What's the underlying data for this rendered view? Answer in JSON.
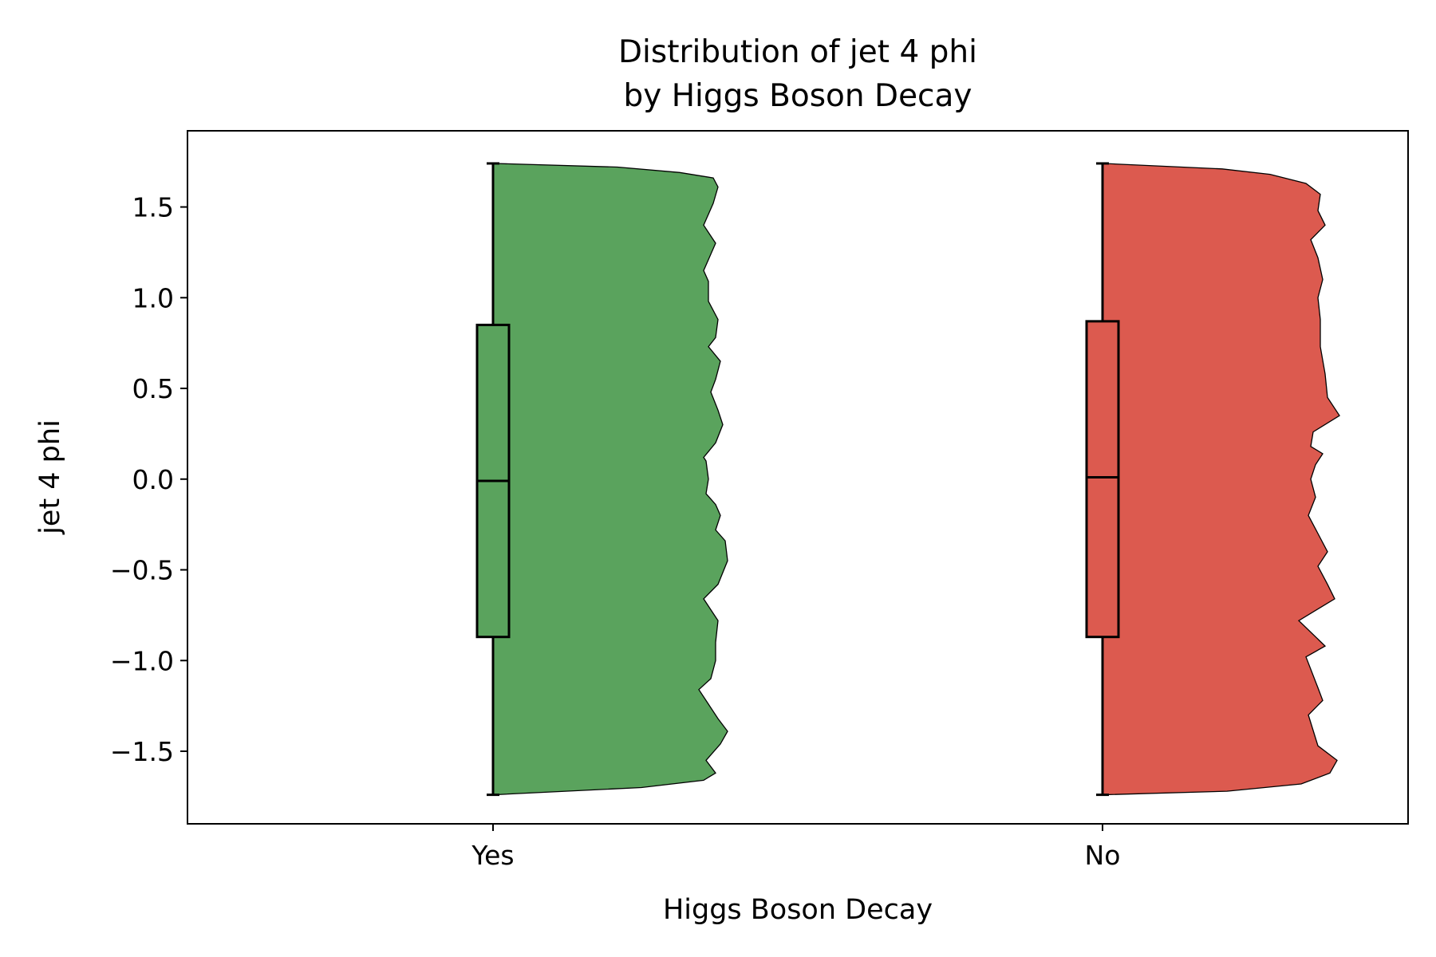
{
  "chart_data": {
    "type": "violin",
    "title_lines": [
      "Distribution of jet 4 phi",
      "by Higgs Boson Decay"
    ],
    "xlabel": "Higgs Boson Decay",
    "ylabel": "jet 4 phi",
    "ylim": [
      -1.9,
      1.92
    ],
    "yticks": [
      {
        "value": 1.5,
        "label": "1.5"
      },
      {
        "value": 1.0,
        "label": "1.0"
      },
      {
        "value": 0.5,
        "label": "0.5"
      },
      {
        "value": 0.0,
        "label": "0.0"
      },
      {
        "value": -0.5,
        "label": "−0.5"
      },
      {
        "value": -1.0,
        "label": "−1.0"
      },
      {
        "value": -1.5,
        "label": "−1.5"
      }
    ],
    "categories": [
      "Yes",
      "No"
    ],
    "series": [
      {
        "category": "Yes",
        "color": "#5aa35d",
        "box": {
          "min": -1.74,
          "q1": -0.87,
          "median": -0.01,
          "q3": 0.85,
          "max": 1.74
        },
        "density": [
          [
            -1.74,
            0.0
          ],
          [
            -1.7,
            0.62
          ],
          [
            -1.66,
            0.88
          ],
          [
            -1.62,
            0.93
          ],
          [
            -1.55,
            0.89
          ],
          [
            -1.46,
            0.95
          ],
          [
            -1.39,
            0.98
          ],
          [
            -1.32,
            0.94
          ],
          [
            -1.24,
            0.9
          ],
          [
            -1.16,
            0.86
          ],
          [
            -1.1,
            0.91
          ],
          [
            -1.0,
            0.93
          ],
          [
            -0.9,
            0.93
          ],
          [
            -0.78,
            0.94
          ],
          [
            -0.66,
            0.88
          ],
          [
            -0.58,
            0.94
          ],
          [
            -0.45,
            0.98
          ],
          [
            -0.34,
            0.97
          ],
          [
            -0.28,
            0.93
          ],
          [
            -0.2,
            0.95
          ],
          [
            -0.14,
            0.93
          ],
          [
            -0.08,
            0.89
          ],
          [
            0.0,
            0.9
          ],
          [
            0.1,
            0.89
          ],
          [
            0.12,
            0.88
          ],
          [
            0.2,
            0.93
          ],
          [
            0.3,
            0.96
          ],
          [
            0.38,
            0.94
          ],
          [
            0.48,
            0.91
          ],
          [
            0.55,
            0.93
          ],
          [
            0.65,
            0.95
          ],
          [
            0.73,
            0.9
          ],
          [
            0.78,
            0.93
          ],
          [
            0.88,
            0.94
          ],
          [
            0.98,
            0.9
          ],
          [
            1.09,
            0.9
          ],
          [
            1.15,
            0.88
          ],
          [
            1.3,
            0.93
          ],
          [
            1.4,
            0.88
          ],
          [
            1.52,
            0.92
          ],
          [
            1.61,
            0.94
          ],
          [
            1.66,
            0.92
          ],
          [
            1.69,
            0.78
          ],
          [
            1.72,
            0.52
          ],
          [
            1.74,
            0.0
          ]
        ]
      },
      {
        "category": "No",
        "color": "#dc5a4f",
        "box": {
          "min": -1.74,
          "q1": -0.87,
          "median": 0.01,
          "q3": 0.87,
          "max": 1.74
        },
        "density": [
          [
            -1.74,
            0.0
          ],
          [
            -1.72,
            0.52
          ],
          [
            -1.68,
            0.83
          ],
          [
            -1.62,
            0.95
          ],
          [
            -1.55,
            0.98
          ],
          [
            -1.47,
            0.9
          ],
          [
            -1.3,
            0.86
          ],
          [
            -1.22,
            0.92
          ],
          [
            -1.15,
            0.9
          ],
          [
            -0.98,
            0.85
          ],
          [
            -0.92,
            0.93
          ],
          [
            -0.78,
            0.82
          ],
          [
            -0.66,
            0.97
          ],
          [
            -0.58,
            0.94
          ],
          [
            -0.48,
            0.9
          ],
          [
            -0.4,
            0.94
          ],
          [
            -0.3,
            0.9
          ],
          [
            -0.2,
            0.86
          ],
          [
            -0.1,
            0.89
          ],
          [
            0.0,
            0.87
          ],
          [
            0.08,
            0.89
          ],
          [
            0.14,
            0.92
          ],
          [
            0.18,
            0.87
          ],
          [
            0.26,
            0.88
          ],
          [
            0.35,
            0.99
          ],
          [
            0.45,
            0.94
          ],
          [
            0.58,
            0.93
          ],
          [
            0.73,
            0.91
          ],
          [
            0.88,
            0.91
          ],
          [
            1.0,
            0.9
          ],
          [
            1.1,
            0.92
          ],
          [
            1.22,
            0.9
          ],
          [
            1.32,
            0.87
          ],
          [
            1.4,
            0.93
          ],
          [
            1.48,
            0.9
          ],
          [
            1.57,
            0.91
          ],
          [
            1.63,
            0.85
          ],
          [
            1.68,
            0.7
          ],
          [
            1.71,
            0.5
          ],
          [
            1.74,
            0.0
          ]
        ]
      }
    ],
    "grid": false,
    "legend": "none"
  }
}
